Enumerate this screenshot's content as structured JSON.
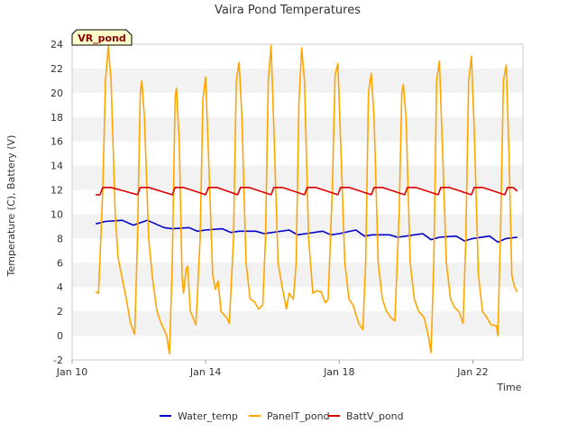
{
  "chart_data": {
    "type": "line",
    "title": "Vaira Pond Temperatures",
    "xlabel": "Time",
    "ylabel": "Temperature (C), Battery (V)",
    "xlim": [
      "2024-01-10T00:00",
      "2024-01-23T12:00"
    ],
    "ylim": [
      -2,
      24
    ],
    "yticks": [
      -2,
      0,
      2,
      4,
      6,
      8,
      10,
      12,
      14,
      16,
      18,
      20,
      22,
      24
    ],
    "xticks": [
      {
        "x": "2024-01-10T00:00",
        "label": "Jan 10"
      },
      {
        "x": "2024-01-14T00:00",
        "label": "Jan 14"
      },
      {
        "x": "2024-01-18T00:00",
        "label": "Jan 18"
      },
      {
        "x": "2024-01-22T00:00",
        "label": "Jan 22"
      }
    ],
    "grid": "horizontal alternating bands",
    "legend_position": "bottom",
    "annotation": "VR_pond",
    "series": [
      {
        "name": "Water_temp",
        "color": "#0000cc",
        "points": [
          [
            "2024-01-10T17:00",
            9.2
          ],
          [
            "2024-01-11T00:00",
            9.4
          ],
          [
            "2024-01-11T12:00",
            9.5
          ],
          [
            "2024-01-11T20:00",
            9.1
          ],
          [
            "2024-01-12T06:00",
            9.5
          ],
          [
            "2024-01-12T12:00",
            9.2
          ],
          [
            "2024-01-12T18:00",
            8.9
          ],
          [
            "2024-01-13T00:00",
            8.8
          ],
          [
            "2024-01-13T12:00",
            8.9
          ],
          [
            "2024-01-13T18:00",
            8.6
          ],
          [
            "2024-01-14T00:00",
            8.7
          ],
          [
            "2024-01-14T12:00",
            8.8
          ],
          [
            "2024-01-14T18:00",
            8.5
          ],
          [
            "2024-01-15T00:00",
            8.6
          ],
          [
            "2024-01-15T12:00",
            8.6
          ],
          [
            "2024-01-15T18:00",
            8.4
          ],
          [
            "2024-01-16T00:00",
            8.5
          ],
          [
            "2024-01-16T12:00",
            8.7
          ],
          [
            "2024-01-16T18:00",
            8.3
          ],
          [
            "2024-01-17T00:00",
            8.4
          ],
          [
            "2024-01-17T12:00",
            8.6
          ],
          [
            "2024-01-17T18:00",
            8.3
          ],
          [
            "2024-01-18T00:00",
            8.4
          ],
          [
            "2024-01-18T12:00",
            8.7
          ],
          [
            "2024-01-18T18:00",
            8.2
          ],
          [
            "2024-01-19T00:00",
            8.3
          ],
          [
            "2024-01-19T12:00",
            8.3
          ],
          [
            "2024-01-19T18:00",
            8.1
          ],
          [
            "2024-01-20T00:00",
            8.2
          ],
          [
            "2024-01-20T12:00",
            8.4
          ],
          [
            "2024-01-20T18:00",
            7.9
          ],
          [
            "2024-01-21T00:00",
            8.1
          ],
          [
            "2024-01-21T12:00",
            8.2
          ],
          [
            "2024-01-21T18:00",
            7.8
          ],
          [
            "2024-01-22T00:00",
            8.0
          ],
          [
            "2024-01-22T12:00",
            8.2
          ],
          [
            "2024-01-22T18:00",
            7.7
          ],
          [
            "2024-01-23T00:00",
            8.0
          ],
          [
            "2024-01-23T08:00",
            8.1
          ]
        ]
      },
      {
        "name": "PanelT_pond",
        "color": "#ffa500",
        "points": [
          [
            "2024-01-10T17:00",
            3.6
          ],
          [
            "2024-01-10T19:00",
            3.5
          ],
          [
            "2024-01-10T22:00",
            12.0
          ],
          [
            "2024-01-11T00:00",
            21.0
          ],
          [
            "2024-01-11T02:00",
            23.8
          ],
          [
            "2024-01-11T04:00",
            21.0
          ],
          [
            "2024-01-11T07:00",
            10.0
          ],
          [
            "2024-01-11T09:00",
            6.5
          ],
          [
            "2024-01-11T12:00",
            4.7
          ],
          [
            "2024-01-11T15:00",
            3.0
          ],
          [
            "2024-01-11T18:00",
            1.0
          ],
          [
            "2024-01-11T21:00",
            0.1
          ],
          [
            "2024-01-11T23:00",
            8.0
          ],
          [
            "2024-01-12T01:00",
            20.0
          ],
          [
            "2024-01-12T02:00",
            21.0
          ],
          [
            "2024-01-12T04:00",
            18.0
          ],
          [
            "2024-01-12T07:00",
            8.0
          ],
          [
            "2024-01-12T10:00",
            4.5
          ],
          [
            "2024-01-12T13:00",
            2.0
          ],
          [
            "2024-01-12T16:00",
            1.0
          ],
          [
            "2024-01-12T20:00",
            0.0
          ],
          [
            "2024-01-12T22:00",
            -1.5
          ],
          [
            "2024-01-13T00:00",
            6.0
          ],
          [
            "2024-01-13T02:00",
            19.5
          ],
          [
            "2024-01-13T03:00",
            20.4
          ],
          [
            "2024-01-13T05:00",
            16.0
          ],
          [
            "2024-01-13T07:00",
            5.0
          ],
          [
            "2024-01-13T08:00",
            3.5
          ],
          [
            "2024-01-13T10:00",
            5.5
          ],
          [
            "2024-01-13T11:00",
            5.7
          ],
          [
            "2024-01-13T13:00",
            2.0
          ],
          [
            "2024-01-13T17:00",
            0.9
          ],
          [
            "2024-01-13T20:00",
            8.0
          ],
          [
            "2024-01-13T22:00",
            19.5
          ],
          [
            "2024-01-14T00:00",
            21.3
          ],
          [
            "2024-01-14T02:00",
            15.0
          ],
          [
            "2024-01-14T05:00",
            5.0
          ],
          [
            "2024-01-14T07:00",
            3.8
          ],
          [
            "2024-01-14T09:00",
            4.5
          ],
          [
            "2024-01-14T11:00",
            2.0
          ],
          [
            "2024-01-14T15:00",
            1.5
          ],
          [
            "2024-01-14T17:00",
            1.0
          ],
          [
            "2024-01-14T20:00",
            8.0
          ],
          [
            "2024-01-14T22:00",
            21.0
          ],
          [
            "2024-01-15T00:00",
            22.5
          ],
          [
            "2024-01-15T02:00",
            18.0
          ],
          [
            "2024-01-15T05:00",
            6.0
          ],
          [
            "2024-01-15T08:00",
            3.0
          ],
          [
            "2024-01-15T11:00",
            2.8
          ],
          [
            "2024-01-15T14:00",
            2.2
          ],
          [
            "2024-01-15T17:00",
            2.5
          ],
          [
            "2024-01-15T19:00",
            8.0
          ],
          [
            "2024-01-15T21:00",
            21.0
          ],
          [
            "2024-01-15T23:00",
            23.9
          ],
          [
            "2024-01-16T01:00",
            17.0
          ],
          [
            "2024-01-16T04:00",
            6.0
          ],
          [
            "2024-01-16T07:00",
            4.0
          ],
          [
            "2024-01-16T10:00",
            2.2
          ],
          [
            "2024-01-16T12:00",
            3.5
          ],
          [
            "2024-01-16T15:00",
            3.0
          ],
          [
            "2024-01-16T17:00",
            6.0
          ],
          [
            "2024-01-16T19:00",
            19.0
          ],
          [
            "2024-01-16T21:00",
            23.7
          ],
          [
            "2024-01-16T23:00",
            21.0
          ],
          [
            "2024-01-17T02:00",
            8.0
          ],
          [
            "2024-01-17T05:00",
            3.5
          ],
          [
            "2024-01-17T08:00",
            3.7
          ],
          [
            "2024-01-17T11:00",
            3.6
          ],
          [
            "2024-01-17T14:00",
            2.7
          ],
          [
            "2024-01-17T16:00",
            3.0
          ],
          [
            "2024-01-17T19:00",
            12.0
          ],
          [
            "2024-01-17T21:00",
            21.5
          ],
          [
            "2024-01-17T23:00",
            22.4
          ],
          [
            "2024-01-18T01:00",
            16.0
          ],
          [
            "2024-01-18T04:00",
            6.0
          ],
          [
            "2024-01-18T07:00",
            3.0
          ],
          [
            "2024-01-18T10:00",
            2.5
          ],
          [
            "2024-01-18T14:00",
            1.0
          ],
          [
            "2024-01-18T17:00",
            0.5
          ],
          [
            "2024-01-18T19:00",
            6.0
          ],
          [
            "2024-01-18T21:00",
            20.0
          ],
          [
            "2024-01-18T23:00",
            21.6
          ],
          [
            "2024-01-19T01:00",
            18.0
          ],
          [
            "2024-01-19T04:00",
            6.0
          ],
          [
            "2024-01-19T07:00",
            3.0
          ],
          [
            "2024-01-19T10:00",
            2.0
          ],
          [
            "2024-01-19T13:00",
            1.5
          ],
          [
            "2024-01-19T16:00",
            1.2
          ],
          [
            "2024-01-19T19:00",
            10.0
          ],
          [
            "2024-01-19T21:00",
            20.0
          ],
          [
            "2024-01-19T22:00",
            20.7
          ],
          [
            "2024-01-20T00:00",
            18.0
          ],
          [
            "2024-01-20T03:00",
            6.0
          ],
          [
            "2024-01-20T06:00",
            3.0
          ],
          [
            "2024-01-20T09:00",
            2.0
          ],
          [
            "2024-01-20T13:00",
            1.5
          ],
          [
            "2024-01-20T16:00",
            0.0
          ],
          [
            "2024-01-20T18:00",
            -1.4
          ],
          [
            "2024-01-20T20:00",
            6.0
          ],
          [
            "2024-01-20T22:00",
            21.0
          ],
          [
            "2024-01-21T00:00",
            22.6
          ],
          [
            "2024-01-21T02:00",
            16.0
          ],
          [
            "2024-01-21T05:00",
            6.0
          ],
          [
            "2024-01-21T08:00",
            3.0
          ],
          [
            "2024-01-21T11:00",
            2.3
          ],
          [
            "2024-01-21T14:00",
            2.0
          ],
          [
            "2024-01-21T17:00",
            1.0
          ],
          [
            "2024-01-21T19:00",
            8.0
          ],
          [
            "2024-01-21T21:00",
            21.0
          ],
          [
            "2024-01-21T23:00",
            23.0
          ],
          [
            "2024-01-22T01:00",
            17.0
          ],
          [
            "2024-01-22T04:00",
            5.0
          ],
          [
            "2024-01-22T07:00",
            2.0
          ],
          [
            "2024-01-22T10:00",
            1.5
          ],
          [
            "2024-01-22T13:00",
            0.9
          ],
          [
            "2024-01-22T17:00",
            0.8
          ],
          [
            "2024-01-22T18:00",
            0.0
          ],
          [
            "2024-01-22T20:00",
            9.0
          ],
          [
            "2024-01-22T22:00",
            21.0
          ],
          [
            "2024-01-23T00:00",
            22.3
          ],
          [
            "2024-01-23T02:00",
            15.0
          ],
          [
            "2024-01-23T04:00",
            5.0
          ],
          [
            "2024-01-23T06:00",
            4.0
          ],
          [
            "2024-01-23T08:00",
            3.6
          ]
        ]
      },
      {
        "name": "BattV_pond",
        "color": "#dd0000",
        "points": [
          [
            "2024-01-10T17:00",
            11.6
          ],
          [
            "2024-01-10T20:00",
            11.6
          ],
          [
            "2024-01-10T22:00",
            12.2
          ],
          [
            "2024-01-11T04:00",
            12.2
          ],
          [
            "2024-01-11T23:00",
            11.6
          ],
          [
            "2024-01-12T01:00",
            12.2
          ],
          [
            "2024-01-12T07:00",
            12.2
          ],
          [
            "2024-01-13T00:00",
            11.6
          ],
          [
            "2024-01-13T02:00",
            12.2
          ],
          [
            "2024-01-13T08:00",
            12.2
          ],
          [
            "2024-01-14T00:00",
            11.6
          ],
          [
            "2024-01-14T02:00",
            12.2
          ],
          [
            "2024-01-14T08:00",
            12.2
          ],
          [
            "2024-01-14T23:00",
            11.6
          ],
          [
            "2024-01-15T01:00",
            12.2
          ],
          [
            "2024-01-15T07:00",
            12.2
          ],
          [
            "2024-01-15T23:00",
            11.6
          ],
          [
            "2024-01-16T01:00",
            12.2
          ],
          [
            "2024-01-16T07:00",
            12.2
          ],
          [
            "2024-01-16T23:00",
            11.6
          ],
          [
            "2024-01-17T01:00",
            12.2
          ],
          [
            "2024-01-17T07:00",
            12.2
          ],
          [
            "2024-01-17T23:00",
            11.6
          ],
          [
            "2024-01-18T01:00",
            12.2
          ],
          [
            "2024-01-18T07:00",
            12.2
          ],
          [
            "2024-01-18T23:00",
            11.6
          ],
          [
            "2024-01-19T01:00",
            12.2
          ],
          [
            "2024-01-19T07:00",
            12.2
          ],
          [
            "2024-01-19T23:00",
            11.6
          ],
          [
            "2024-01-20T01:00",
            12.2
          ],
          [
            "2024-01-20T07:00",
            12.2
          ],
          [
            "2024-01-20T23:00",
            11.6
          ],
          [
            "2024-01-21T01:00",
            12.2
          ],
          [
            "2024-01-21T07:00",
            12.2
          ],
          [
            "2024-01-21T23:00",
            11.6
          ],
          [
            "2024-01-22T01:00",
            12.2
          ],
          [
            "2024-01-22T07:00",
            12.2
          ],
          [
            "2024-01-22T23:00",
            11.6
          ],
          [
            "2024-01-23T01:00",
            12.2
          ],
          [
            "2024-01-23T05:00",
            12.2
          ],
          [
            "2024-01-23T08:00",
            11.9
          ]
        ]
      }
    ]
  }
}
